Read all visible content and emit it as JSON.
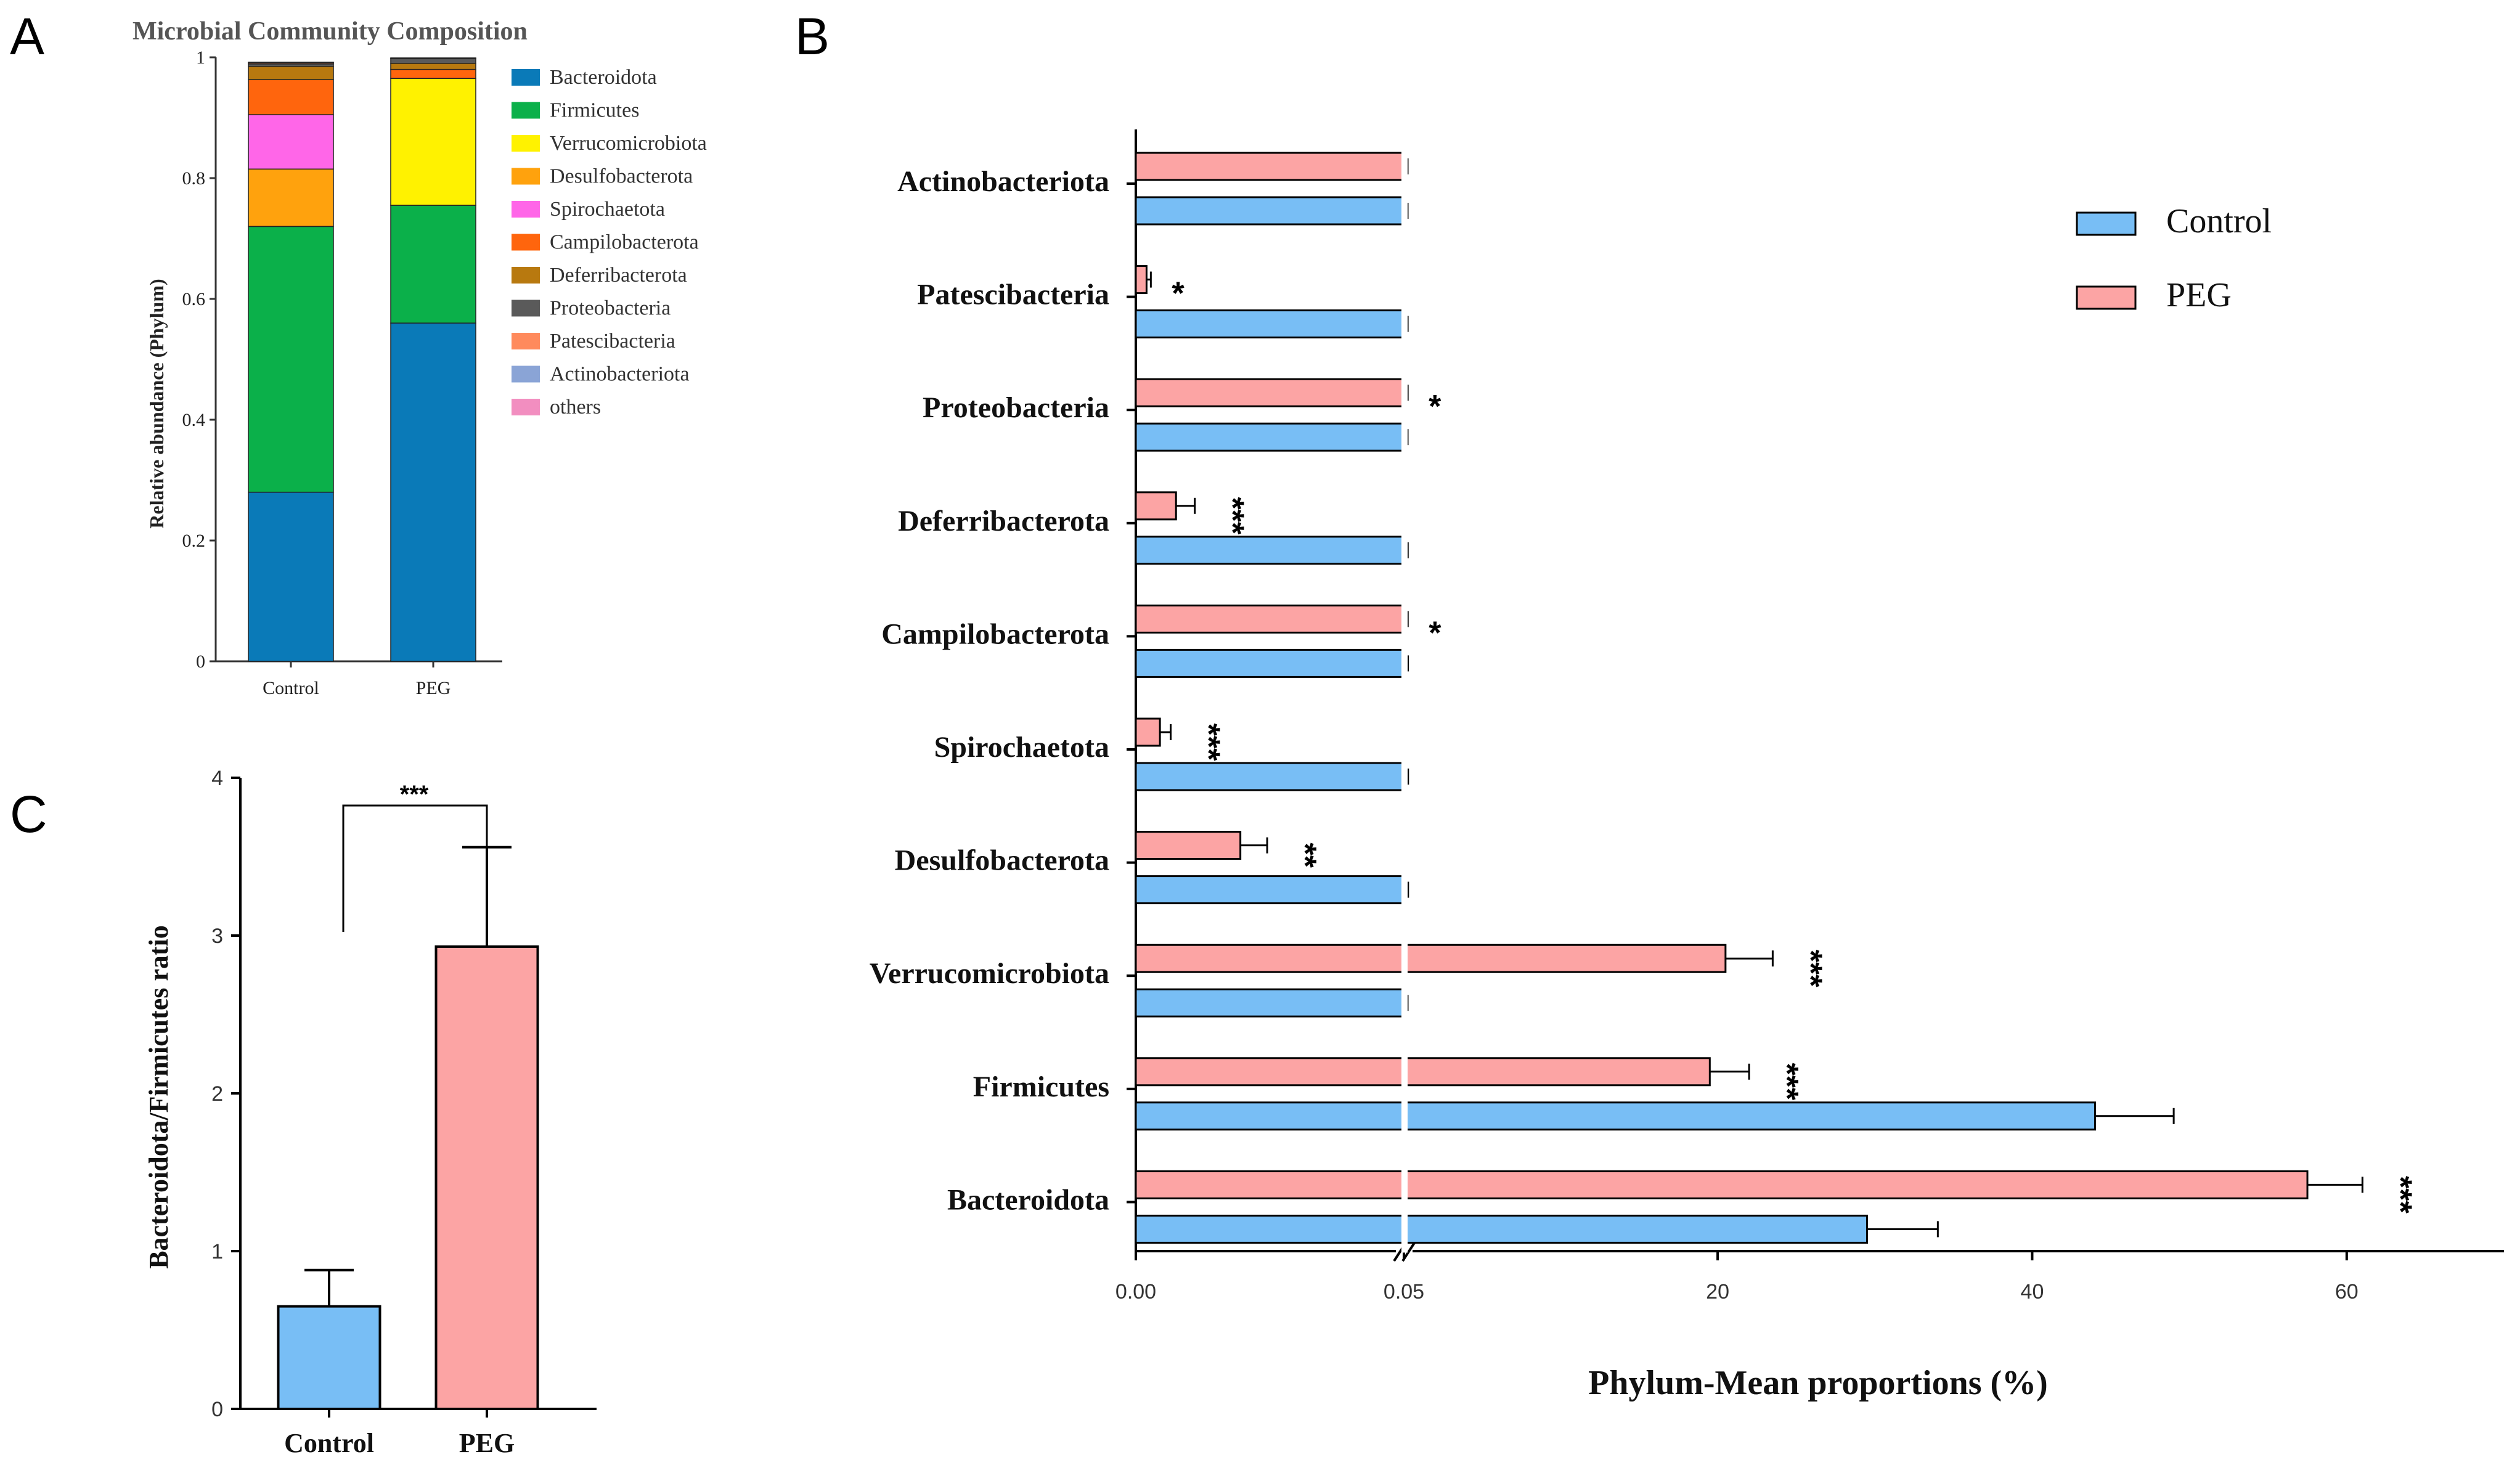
{
  "panels": {
    "a": "A",
    "b": "B",
    "c": "C"
  },
  "chart_data": [
    {
      "id": "A",
      "type": "bar",
      "stacked": true,
      "title": "Microbial Community Composition",
      "xlabel": "",
      "ylabel": "Relative abundance (Phylum)",
      "ylim": [
        0,
        1
      ],
      "yticks": [
        "0",
        "0.2",
        "0.4",
        "0.6",
        "0.8",
        "1"
      ],
      "categories": [
        "Control",
        "PEG"
      ],
      "series": [
        {
          "name": "Bacteroidota",
          "color": "#0a7ab8",
          "values": [
            0.28,
            0.56
          ]
        },
        {
          "name": "Firmicutes",
          "color": "#0bb04a",
          "values": [
            0.44,
            0.195
          ]
        },
        {
          "name": "Verrucomicrobiota",
          "color": "#fff200",
          "values": [
            0.0,
            0.21
          ]
        },
        {
          "name": "Desulfobacterota",
          "color": "#ffa20d",
          "values": [
            0.095,
            0.0
          ]
        },
        {
          "name": "Spirochaetota",
          "color": "#ff66e8",
          "values": [
            0.09,
            0.0
          ]
        },
        {
          "name": "Campilobacterota",
          "color": "#ff650d",
          "values": [
            0.058,
            0.015
          ]
        },
        {
          "name": "Deferribacterota",
          "color": "#b8790f",
          "values": [
            0.022,
            0.01
          ]
        },
        {
          "name": "Proteobacteria",
          "color": "#5a5a5a",
          "values": [
            0.004,
            0.008
          ]
        },
        {
          "name": "Patescibacteria",
          "color": "#ff8a5c",
          "values": [
            0.002,
            0.0
          ]
        },
        {
          "name": "Actinobacteriota",
          "color": "#8aa4d6",
          "values": [
            0.0005,
            0.0005
          ]
        },
        {
          "name": "others",
          "color": "#f28ec0",
          "values": [
            0.0005,
            0.0005
          ]
        }
      ],
      "legend": "right"
    },
    {
      "id": "B",
      "type": "bar",
      "orientation": "horizontal",
      "title": "",
      "xlabel": "Phylum-Mean proportions (%)",
      "ylabel": "",
      "broken_axis": {
        "break_at": 0.05,
        "left_range": [
          0,
          0.05
        ],
        "right_range": [
          0.05,
          70
        ]
      },
      "xticks": [
        "0.00",
        "0.05",
        "20",
        "40",
        "60"
      ],
      "categories": [
        "Actinobacteriota",
        "Patescibacteria",
        "Proteobacteria",
        "Deferribacterota",
        "Campilobacterota",
        "Spirochaetota",
        "Desulfobacterota",
        "Verrucomicrobiota",
        "Firmicutes",
        "Bacteroidota"
      ],
      "series": [
        {
          "name": "PEG",
          "color": "#fca4a4",
          "values": [
            0.05,
            0.002,
            0.0557,
            0.0075,
            0.0595,
            0.0045,
            0.0195,
            20.5,
            19.5,
            57.5
          ],
          "errors": [
            0.0005,
            0.0008,
            0.005,
            0.0035,
            0.004,
            0.002,
            0.005,
            3.0,
            2.5,
            3.5
          ]
        },
        {
          "name": "Control",
          "color": "#78bef5",
          "values": [
            0.05,
            0.0537,
            0.05,
            0.0605,
            0.0705,
            0.0805,
            0.0815,
            0.05,
            44.0,
            29.5
          ],
          "errors": [
            0.0005,
            0.0025,
            0.0005,
            0.0025,
            0.009,
            0.0145,
            0.0175,
            0.1,
            5.0,
            4.5
          ]
        }
      ],
      "significance": [
        "",
        "*",
        "*",
        "***",
        "*",
        "***",
        "**",
        "***",
        "***",
        "***"
      ],
      "legend": "top-right"
    },
    {
      "id": "C",
      "type": "bar",
      "title": "",
      "xlabel": "",
      "ylabel": "Bacteroidota/Firmicutes ratio",
      "ylim": [
        0,
        4
      ],
      "yticks": [
        "0",
        "1",
        "2",
        "3",
        "4"
      ],
      "categories": [
        "Control",
        "PEG"
      ],
      "values": [
        0.65,
        2.93
      ],
      "errors": [
        0.23,
        0.63
      ],
      "colors": [
        "#78bef5",
        "#fca4a4"
      ],
      "significance": "***"
    }
  ]
}
